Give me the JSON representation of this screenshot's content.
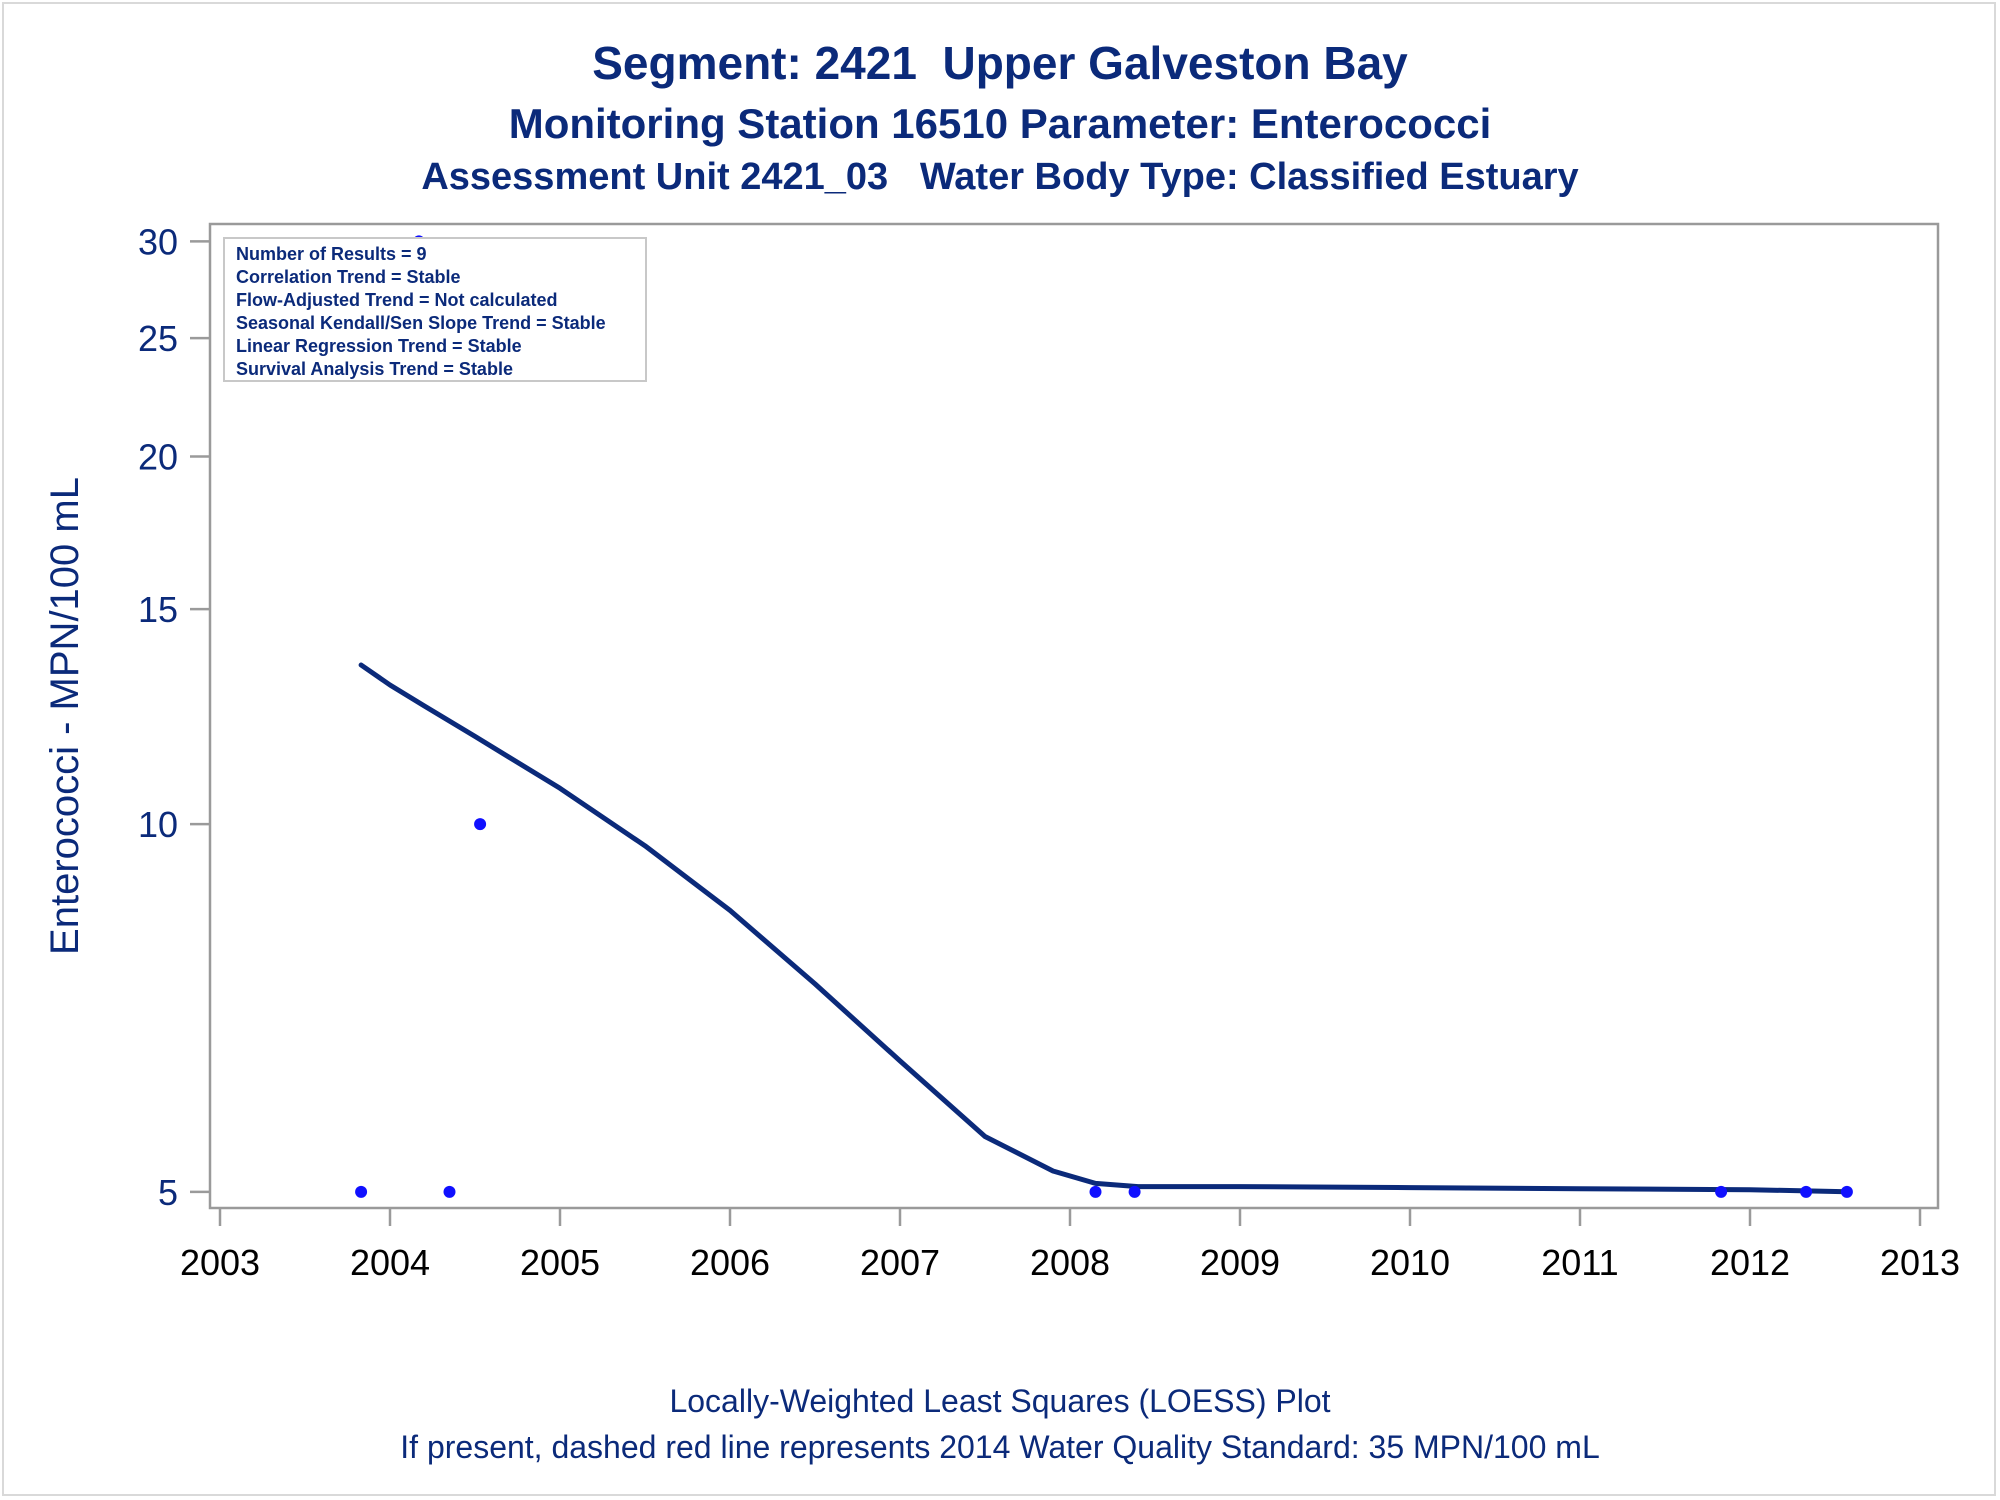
{
  "title_line1": "Segment: 2421  Upper Galveston Bay",
  "title_line2": "Monitoring Station 16510 Parameter: Enterococci",
  "title_line3": "Assessment Unit 2421_03   Water Body Type: Classified Estuary",
  "footnote_line1": "Locally-Weighted Least Squares (LOESS) Plot",
  "footnote_line2": "If present, dashed red line represents 2014 Water Quality Standard: 35 MPN/100 mL",
  "stats_box": [
    "Number of Results = 9",
    "Correlation Trend = Stable",
    "Flow-Adjusted Trend = Not calculated",
    "Seasonal Kendall/Sen Slope Trend = Stable",
    "Linear Regression Trend = Stable",
    "Survival Analysis Trend = Stable"
  ],
  "colors": {
    "text": "#0b2a7a",
    "points": "#1010ff",
    "loess_line": "#0b2a7a",
    "axis": "#9a9a9a"
  },
  "chart_data": {
    "type": "scatter",
    "ylabel": "Enterococci - MPN/100 mL",
    "xlabel": "",
    "y_scale": "log",
    "xlim": [
      2003,
      2013
    ],
    "ylim": [
      4.85,
      31
    ],
    "x_ticks": [
      2003,
      2004,
      2005,
      2006,
      2007,
      2008,
      2009,
      2010,
      2011,
      2012,
      2013
    ],
    "y_ticks": [
      5,
      10,
      15,
      20,
      25,
      30
    ],
    "series": [
      {
        "type": "scatter",
        "points": [
          [
            2003.83,
            5
          ],
          [
            2004.17,
            30
          ],
          [
            2004.35,
            5
          ],
          [
            2004.53,
            10
          ],
          [
            2008.15,
            5
          ],
          [
            2008.38,
            5
          ],
          [
            2011.83,
            5
          ],
          [
            2012.33,
            5
          ],
          [
            2012.57,
            5
          ]
        ]
      },
      {
        "type": "line",
        "points": [
          [
            2003.83,
            13.5
          ],
          [
            2004.0,
            13.0
          ],
          [
            2004.2,
            12.5
          ],
          [
            2004.5,
            11.8
          ],
          [
            2005.0,
            10.7
          ],
          [
            2005.5,
            9.6
          ],
          [
            2006.0,
            8.5
          ],
          [
            2006.5,
            7.4
          ],
          [
            2007.0,
            6.4
          ],
          [
            2007.5,
            5.55
          ],
          [
            2007.9,
            5.2
          ],
          [
            2008.15,
            5.08
          ],
          [
            2008.4,
            5.05
          ],
          [
            2009.0,
            5.05
          ],
          [
            2010.0,
            5.04
          ],
          [
            2011.0,
            5.03
          ],
          [
            2012.0,
            5.02
          ],
          [
            2012.57,
            5.0
          ]
        ]
      }
    ]
  }
}
